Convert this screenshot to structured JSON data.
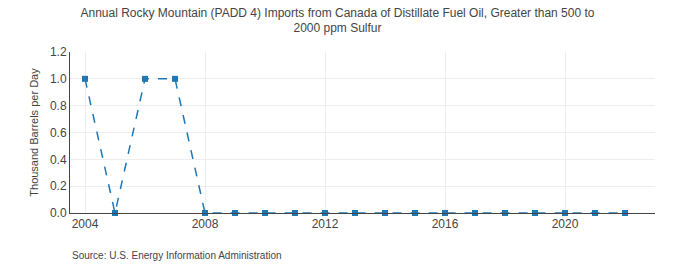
{
  "chart_data": {
    "type": "line",
    "title": "Annual Rocky Mountain (PADD 4) Imports from Canada of Distillate Fuel Oil, Greater than 500 to\n2000 ppm Sulfur",
    "ylabel": "Thousand Barrels per Day",
    "annotations": [
      "Source: U.S. Energy Information Administration"
    ],
    "x": [
      2004,
      2005,
      2006,
      2007,
      2008,
      2009,
      2010,
      2011,
      2012,
      2013,
      2014,
      2015,
      2016,
      2017,
      2018,
      2019,
      2020,
      2021,
      2022
    ],
    "values": [
      1.0,
      0.0,
      1.0,
      1.0,
      0.0,
      0.0,
      0.0,
      0.0,
      0.0,
      0.0,
      0.0,
      0.0,
      0.0,
      0.0,
      0.0,
      0.0,
      0.0,
      0.0,
      0.0
    ],
    "xlim": [
      2003.5,
      2023
    ],
    "xticks": [
      2004,
      2008,
      2012,
      2016,
      2020
    ],
    "ylim": [
      0.0,
      1.2
    ],
    "yticks": [
      {
        "value": 0.0,
        "label": "0.0"
      },
      0.2,
      0.4,
      0.6,
      0.8,
      {
        "value": 1.0,
        "label": "1.0"
      },
      1.2
    ],
    "grid": true,
    "marker": "square",
    "line_style": "dash"
  }
}
